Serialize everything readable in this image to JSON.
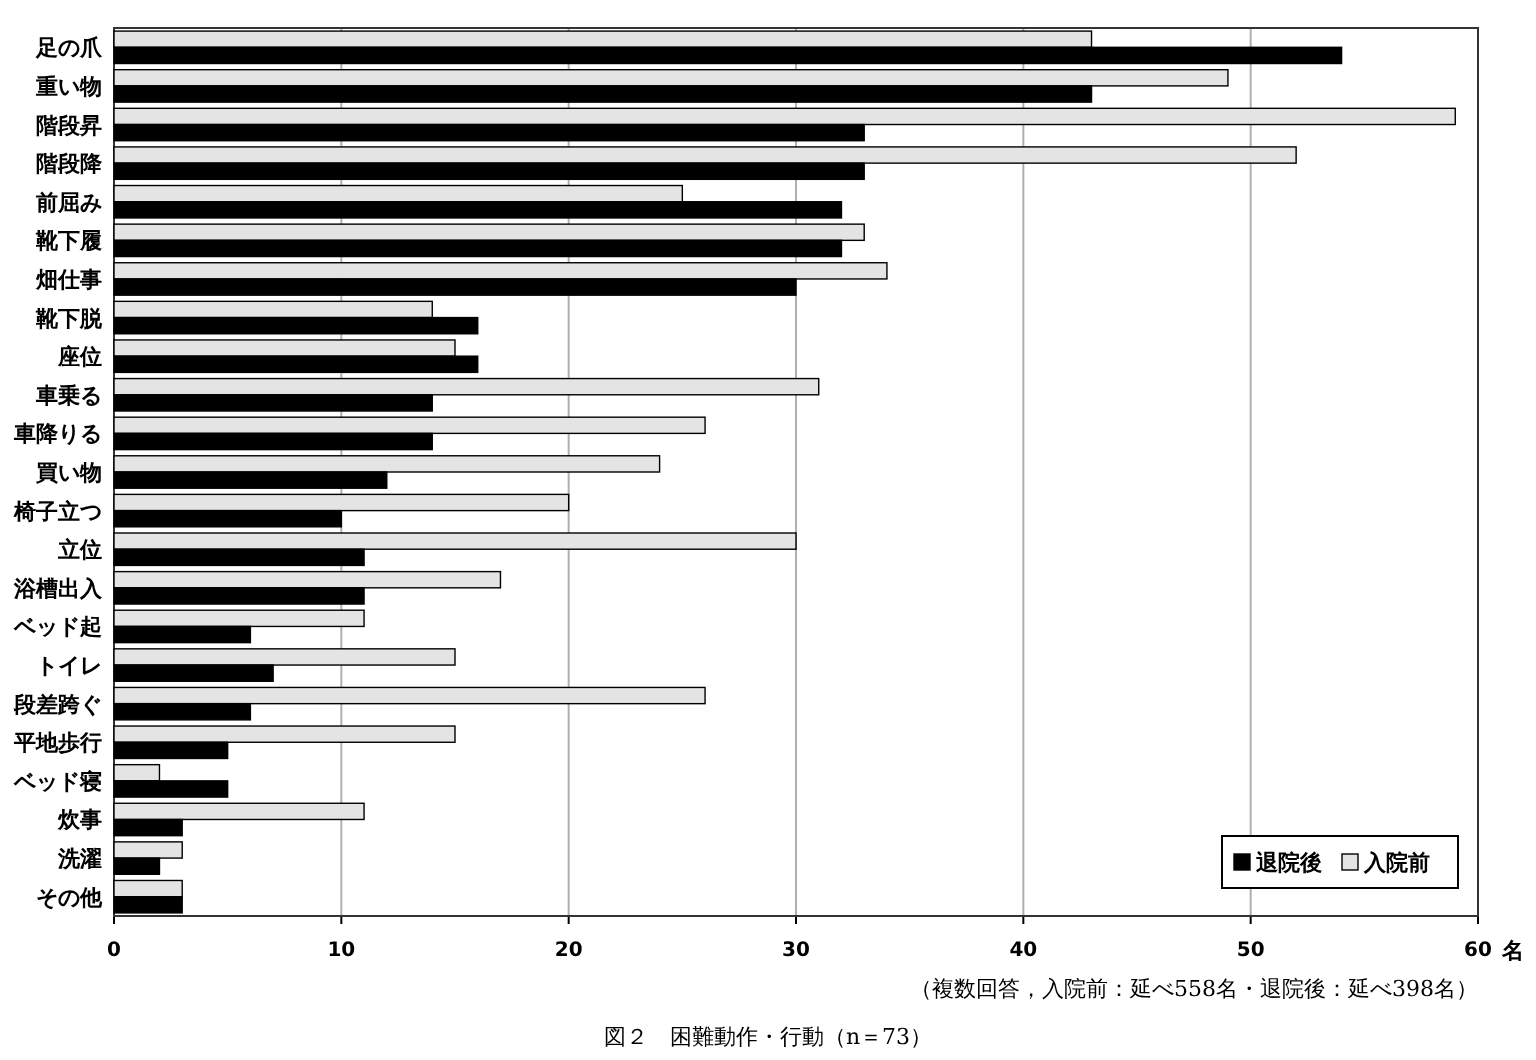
{
  "chart_data": {
    "type": "bar",
    "orientation": "horizontal",
    "title": "図２　困難動作・行動（n＝73）",
    "xlabel": "名",
    "annotations": [
      "（複数回答，入院前：延べ558名・退院後：延べ398名）"
    ],
    "categories": [
      "足の爪",
      "重い物",
      "階段昇",
      "階段降",
      "前屈み",
      "靴下履",
      "畑仕事",
      "靴下脱",
      "座位",
      "車乗る",
      "車降りる",
      "買い物",
      "椅子立つ",
      "立位",
      "浴槽出入",
      "ベッド起",
      "トイレ",
      "段差跨ぐ",
      "平地歩行",
      "ベッド寝",
      "炊事",
      "洗濯",
      "その他"
    ],
    "series": [
      {
        "name": "入院前",
        "color": "#e4e4e4",
        "values": [
          43,
          49,
          59,
          52,
          25,
          33,
          34,
          14,
          15,
          31,
          26,
          24,
          20,
          30,
          17,
          11,
          15,
          26,
          15,
          2,
          11,
          3,
          3
        ]
      },
      {
        "name": "退院後",
        "color": "#000000",
        "values": [
          54,
          43,
          33,
          33,
          32,
          32,
          30,
          16,
          16,
          14,
          14,
          12,
          10,
          11,
          11,
          6,
          7,
          6,
          5,
          5,
          3,
          2,
          3
        ]
      }
    ],
    "xlim": [
      0,
      60
    ],
    "xticks": [
      0,
      10,
      20,
      30,
      40,
      50,
      60
    ],
    "grid": "x",
    "legend": "bottom right"
  }
}
